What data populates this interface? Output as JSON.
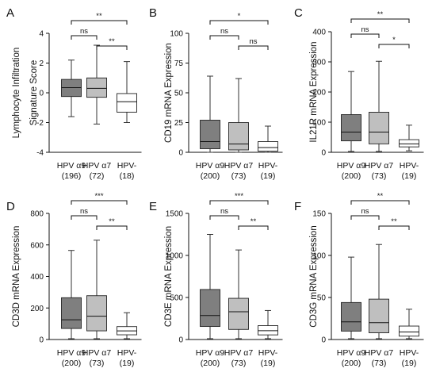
{
  "chart_data": [
    {
      "panel": "A",
      "type": "boxplot",
      "ylabel": [
        "Lymphocyte Infiltration",
        "Signature Score"
      ],
      "ylim": [
        -4,
        4
      ],
      "yticks": [
        -4,
        -2,
        0,
        2,
        4
      ],
      "categories": [
        "HPV α9",
        "HPV α7",
        "HPV-"
      ],
      "counts": [
        "(196)",
        "(72)",
        "(18)"
      ],
      "fills": [
        "#7f7f7f",
        "#bfbfbf",
        "#ffffff"
      ],
      "boxes": [
        {
          "min": -1.6,
          "q1": -0.25,
          "median": 0.35,
          "q3": 0.9,
          "max": 2.2
        },
        {
          "min": -2.1,
          "q1": -0.3,
          "median": 0.3,
          "q3": 1.0,
          "max": 3.2
        },
        {
          "min": -2.0,
          "q1": -1.3,
          "median": -0.6,
          "q3": -0.05,
          "max": 2.1
        }
      ],
      "significance": [
        {
          "from": 0,
          "to": 2,
          "label": "**"
        },
        {
          "from": 0,
          "to": 1,
          "label": "ns"
        },
        {
          "from": 1,
          "to": 2,
          "label": "**"
        }
      ]
    },
    {
      "panel": "B",
      "type": "boxplot",
      "ylabel": [
        "CD19 mRNA Expression"
      ],
      "ylim": [
        0,
        100
      ],
      "yticks": [
        0,
        25,
        50,
        75,
        100
      ],
      "categories": [
        "HPV α9",
        "HPV α7",
        "HPV-"
      ],
      "counts": [
        "(200)",
        "(73)",
        "(19)"
      ],
      "fills": [
        "#7f7f7f",
        "#bfbfbf",
        "#ffffff"
      ],
      "boxes": [
        {
          "min": 0,
          "q1": 3,
          "median": 9,
          "q3": 27,
          "max": 64
        },
        {
          "min": 0,
          "q1": 2,
          "median": 7,
          "q3": 25,
          "max": 62
        },
        {
          "min": 0,
          "q1": 1,
          "median": 4,
          "q3": 9,
          "max": 22
        }
      ],
      "significance": [
        {
          "from": 0,
          "to": 2,
          "label": "*"
        },
        {
          "from": 0,
          "to": 1,
          "label": "ns"
        },
        {
          "from": 1,
          "to": 2,
          "label": "ns"
        }
      ]
    },
    {
      "panel": "C",
      "type": "boxplot",
      "ylabel": [
        "IL21R mRNA Expression"
      ],
      "ylim": [
        0,
        400
      ],
      "yticks": [
        0,
        100,
        200,
        300,
        400
      ],
      "categories": [
        "HPV α9",
        "HPV α7",
        "HPV-"
      ],
      "counts": [
        "(200)",
        "(73)",
        "(19)"
      ],
      "fills": [
        "#7f7f7f",
        "#bfbfbf",
        "#ffffff"
      ],
      "boxes": [
        {
          "min": 3,
          "q1": 38,
          "median": 67,
          "q3": 125,
          "max": 268
        },
        {
          "min": 3,
          "q1": 28,
          "median": 67,
          "q3": 133,
          "max": 302
        },
        {
          "min": 5,
          "q1": 18,
          "median": 28,
          "q3": 42,
          "max": 90
        }
      ],
      "significance": [
        {
          "from": 0,
          "to": 2,
          "label": "**"
        },
        {
          "from": 0,
          "to": 1,
          "label": "ns"
        },
        {
          "from": 1,
          "to": 2,
          "label": "*"
        }
      ]
    },
    {
      "panel": "D",
      "type": "boxplot",
      "ylabel": [
        "CD3D mRNA Expression"
      ],
      "ylim": [
        0,
        800
      ],
      "yticks": [
        0,
        200,
        400,
        600,
        800
      ],
      "categories": [
        "HPV α9",
        "HPV α7",
        "HPV-"
      ],
      "counts": [
        "(200)",
        "(73)",
        "(19)"
      ],
      "fills": [
        "#7f7f7f",
        "#bfbfbf",
        "#ffffff"
      ],
      "boxes": [
        {
          "min": 5,
          "q1": 70,
          "median": 125,
          "q3": 265,
          "max": 565
        },
        {
          "min": 5,
          "q1": 55,
          "median": 148,
          "q3": 278,
          "max": 630
        },
        {
          "min": 5,
          "q1": 30,
          "median": 55,
          "q3": 82,
          "max": 170
        }
      ],
      "significance": [
        {
          "from": 0,
          "to": 2,
          "label": "***"
        },
        {
          "from": 0,
          "to": 1,
          "label": "ns"
        },
        {
          "from": 1,
          "to": 2,
          "label": "**"
        }
      ]
    },
    {
      "panel": "E",
      "type": "boxplot",
      "ylabel": [
        "CD3E mRNA Expression"
      ],
      "ylim": [
        0,
        1500
      ],
      "yticks": [
        0,
        500,
        1000,
        1500
      ],
      "categories": [
        "HPV α9",
        "HPV α7",
        "HPV-"
      ],
      "counts": [
        "(200)",
        "(73)",
        "(19)"
      ],
      "fills": [
        "#7f7f7f",
        "#bfbfbf",
        "#ffffff"
      ],
      "boxes": [
        {
          "min": 10,
          "q1": 155,
          "median": 285,
          "q3": 595,
          "max": 1250
        },
        {
          "min": 10,
          "q1": 120,
          "median": 330,
          "q3": 490,
          "max": 1065
        },
        {
          "min": 10,
          "q1": 55,
          "median": 105,
          "q3": 165,
          "max": 345
        }
      ],
      "significance": [
        {
          "from": 0,
          "to": 2,
          "label": "***"
        },
        {
          "from": 0,
          "to": 1,
          "label": "ns"
        },
        {
          "from": 1,
          "to": 2,
          "label": "**"
        }
      ]
    },
    {
      "panel": "F",
      "type": "boxplot",
      "ylabel": [
        "CD3G mRNA Expression"
      ],
      "ylim": [
        0,
        150
      ],
      "yticks": [
        0,
        50,
        100,
        150
      ],
      "categories": [
        "HPV α9",
        "HPV α7",
        "HPV-"
      ],
      "counts": [
        "(200)",
        "(73)",
        "(19)"
      ],
      "fills": [
        "#7f7f7f",
        "#bfbfbf",
        "#ffffff"
      ],
      "boxes": [
        {
          "min": 1,
          "q1": 10,
          "median": 21,
          "q3": 44,
          "max": 98
        },
        {
          "min": 1,
          "q1": 8,
          "median": 20,
          "q3": 48,
          "max": 113
        },
        {
          "min": 1,
          "q1": 4,
          "median": 9,
          "q3": 16,
          "max": 36
        }
      ],
      "significance": [
        {
          "from": 0,
          "to": 2,
          "label": "**"
        },
        {
          "from": 0,
          "to": 1,
          "label": "ns"
        },
        {
          "from": 1,
          "to": 2,
          "label": "**"
        }
      ]
    }
  ]
}
